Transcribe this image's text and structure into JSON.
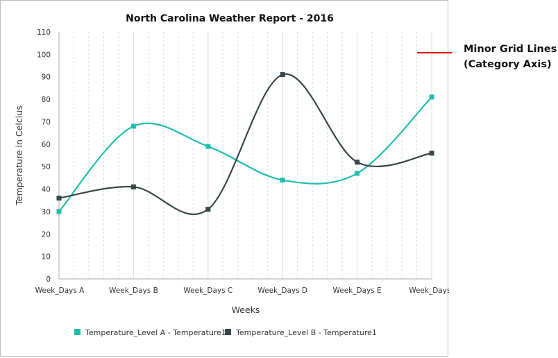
{
  "annotation": {
    "line1": "Minor Grid Lines",
    "line2": "(Category Axis)",
    "line_color": "#e00000"
  },
  "chart_data": {
    "type": "line",
    "title": "North Carolina Weather Report - 2016",
    "xlabel": "Weeks",
    "ylabel": "Temperature in Celcius",
    "categories": [
      "Week_Days A",
      "Week_Days B",
      "Week_Days C",
      "Week_Days D",
      "Week_Days E",
      "Week_Days F"
    ],
    "ylim": [
      0,
      110
    ],
    "yticks": [
      0,
      10,
      20,
      30,
      40,
      50,
      60,
      70,
      80,
      90,
      100,
      110
    ],
    "minor_grid": "category axis, dashed",
    "legend_position": "bottom",
    "series": [
      {
        "name": "Temperature_Level A - Temperature1",
        "values": [
          30,
          68,
          59,
          44,
          47,
          81
        ],
        "color": "#1dbfac"
      },
      {
        "name": "Temperature_Level B - Temperature1",
        "values": [
          36,
          41,
          31,
          91,
          52,
          56
        ],
        "color": "#364649"
      }
    ]
  }
}
